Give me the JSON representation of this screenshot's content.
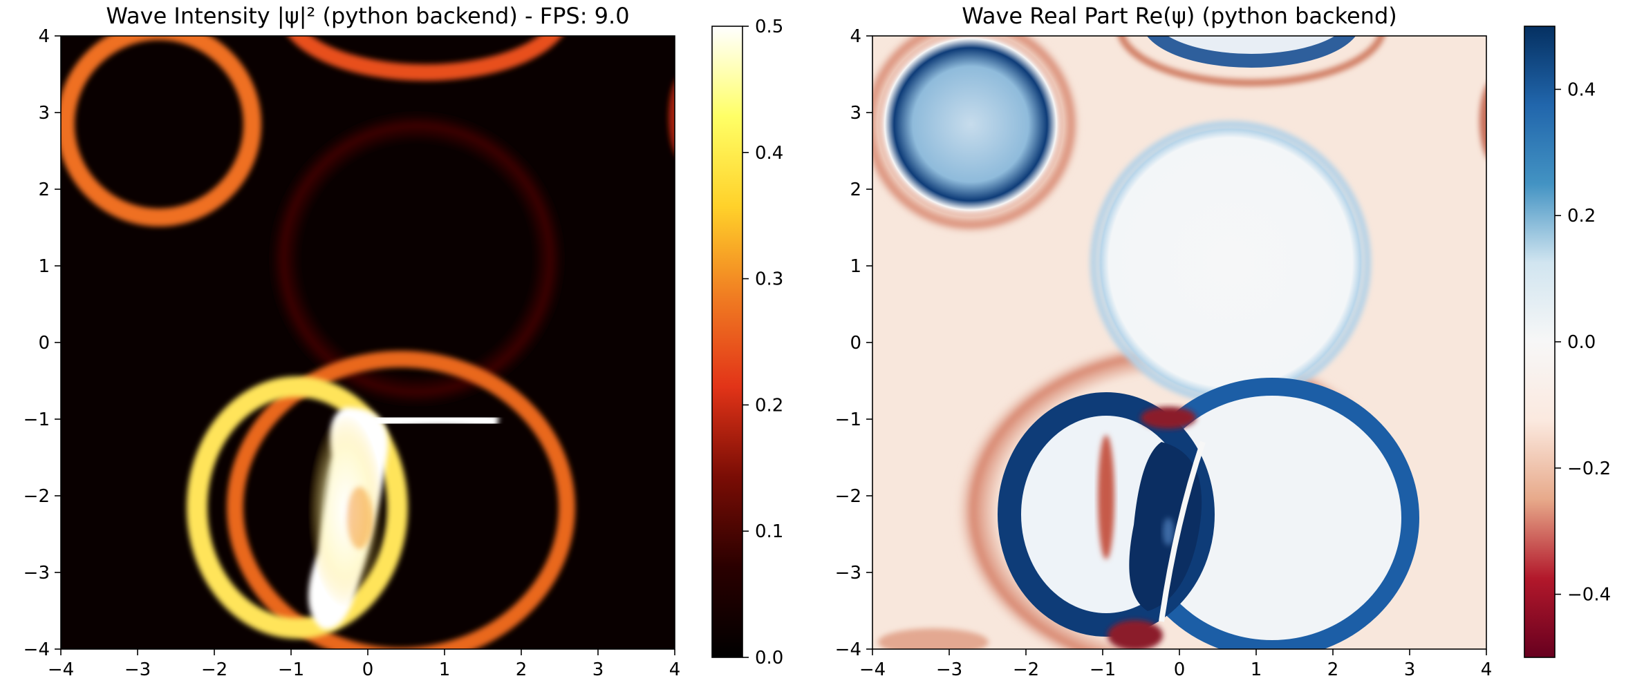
{
  "chart_data": [
    {
      "type": "heatmap",
      "title": "Wave Intensity |ψ|² (python backend) - FPS: 9.0",
      "xlim": [
        -4,
        4
      ],
      "ylim": [
        -4,
        4
      ],
      "x_ticks": [
        "−4",
        "−3",
        "−2",
        "−1",
        "0",
        "1",
        "2",
        "3",
        "4"
      ],
      "y_ticks": [
        "−4",
        "−3",
        "−2",
        "−1",
        "0",
        "1",
        "2",
        "3",
        "4"
      ],
      "colormap": "afmhot",
      "color_range": [
        0.0,
        0.5
      ],
      "colorbar_ticks": [
        "0.0",
        "0.1",
        "0.2",
        "0.3",
        "0.4",
        "0.5"
      ],
      "grid": false
    },
    {
      "type": "heatmap",
      "title": "Wave Real Part Re(ψ) (python backend)",
      "xlim": [
        -4,
        4
      ],
      "ylim": [
        -4,
        4
      ],
      "x_ticks": [
        "−4",
        "−3",
        "−2",
        "−1",
        "0",
        "1",
        "2",
        "3",
        "4"
      ],
      "y_ticks": [
        "−4",
        "−3",
        "−2",
        "−1",
        "0",
        "1",
        "2",
        "3",
        "4"
      ],
      "colormap": "RdBu",
      "color_range": [
        -0.5,
        0.5
      ],
      "colorbar_ticks": [
        "−0.4",
        "−0.2",
        "0.0",
        "0.2",
        "0.4"
      ],
      "colorbar_tick_values": [
        -0.4,
        -0.2,
        0.0,
        0.2,
        0.4
      ],
      "grid": false
    }
  ],
  "colors": {
    "intensity_stops": [
      "#000000",
      "#2a0000",
      "#7a0d05",
      "#e23418",
      "#f07c22",
      "#ffd12a",
      "#ffff66",
      "#ffffff"
    ],
    "real_stops": [
      "#67001f",
      "#b2182b",
      "#e7a98a",
      "#fbe9df",
      "#f7f7f7",
      "#d1e5f0",
      "#4393c3",
      "#2166ac",
      "#053061"
    ]
  }
}
